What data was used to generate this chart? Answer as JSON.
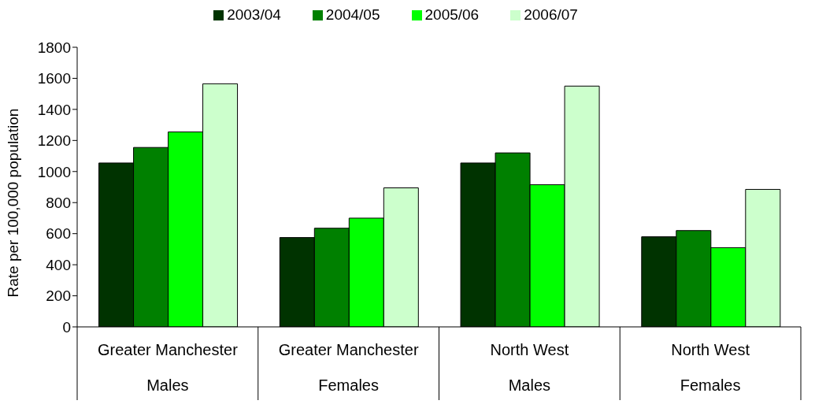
{
  "chart_data": {
    "type": "bar",
    "ylabel": "Rate per 100,000 population",
    "categories": [
      "Greater Manchester\nMales",
      "Greater Manchester\nFemales",
      "North West\nMales",
      "North West\nFemales"
    ],
    "series": [
      {
        "name": "2003/04",
        "color": "#003300",
        "values": [
          1055,
          575,
          1055,
          580
        ]
      },
      {
        "name": "2004/05",
        "color": "#008000",
        "values": [
          1155,
          635,
          1120,
          620
        ]
      },
      {
        "name": "2005/06",
        "color": "#00ff00",
        "values": [
          1255,
          700,
          915,
          510
        ]
      },
      {
        "name": "2006/07",
        "color": "#ccffcc",
        "values": [
          1565,
          895,
          1550,
          885
        ]
      }
    ],
    "ylim": [
      0,
      1800
    ],
    "yticks": [
      0,
      200,
      400,
      600,
      800,
      1000,
      1200,
      1400,
      1600,
      1800
    ],
    "grid": false,
    "legend": "top"
  }
}
